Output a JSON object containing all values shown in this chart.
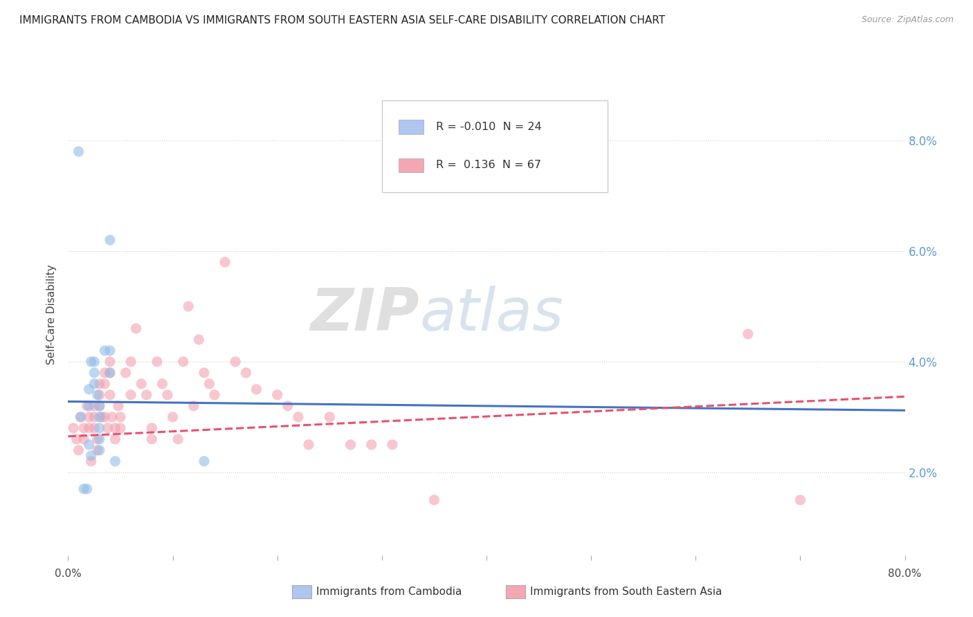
{
  "title": "IMMIGRANTS FROM CAMBODIA VS IMMIGRANTS FROM SOUTH EASTERN ASIA SELF-CARE DISABILITY CORRELATION CHART",
  "source": "Source: ZipAtlas.com",
  "ylabel": "Self-Care Disability",
  "ytick_labels": [
    "2.0%",
    "4.0%",
    "6.0%",
    "8.0%"
  ],
  "ytick_values": [
    0.02,
    0.04,
    0.06,
    0.08
  ],
  "xlim": [
    0.0,
    0.8
  ],
  "ylim": [
    0.005,
    0.092
  ],
  "legend_entry1": {
    "color": "#aec6f0",
    "R": "-0.010",
    "N": "24",
    "label": "Immigrants from Cambodia"
  },
  "legend_entry2": {
    "color": "#f4a7b2",
    "R": " 0.136",
    "N": "67",
    "label": "Immigrants from South Eastern Asia"
  },
  "scatter_blue": {
    "x": [
      0.01,
      0.012,
      0.015,
      0.018,
      0.02,
      0.02,
      0.022,
      0.025,
      0.025,
      0.025,
      0.028,
      0.03,
      0.03,
      0.03,
      0.03,
      0.03,
      0.035,
      0.04,
      0.04,
      0.04,
      0.045,
      0.13,
      0.02,
      0.022
    ],
    "y": [
      0.078,
      0.03,
      0.017,
      0.017,
      0.035,
      0.032,
      0.04,
      0.04,
      0.038,
      0.036,
      0.034,
      0.032,
      0.03,
      0.028,
      0.026,
      0.024,
      0.042,
      0.042,
      0.038,
      0.062,
      0.022,
      0.022,
      0.025,
      0.023
    ]
  },
  "scatter_pink": {
    "x": [
      0.005,
      0.008,
      0.01,
      0.012,
      0.015,
      0.015,
      0.018,
      0.02,
      0.02,
      0.022,
      0.025,
      0.025,
      0.025,
      0.028,
      0.028,
      0.03,
      0.03,
      0.03,
      0.032,
      0.035,
      0.035,
      0.035,
      0.038,
      0.04,
      0.04,
      0.04,
      0.042,
      0.045,
      0.045,
      0.048,
      0.05,
      0.05,
      0.055,
      0.06,
      0.06,
      0.065,
      0.07,
      0.075,
      0.08,
      0.08,
      0.085,
      0.09,
      0.095,
      0.1,
      0.105,
      0.11,
      0.115,
      0.12,
      0.125,
      0.13,
      0.135,
      0.14,
      0.15,
      0.16,
      0.17,
      0.18,
      0.2,
      0.21,
      0.22,
      0.23,
      0.25,
      0.27,
      0.29,
      0.31,
      0.35,
      0.65,
      0.7
    ],
    "y": [
      0.028,
      0.026,
      0.024,
      0.03,
      0.028,
      0.026,
      0.032,
      0.03,
      0.028,
      0.022,
      0.032,
      0.03,
      0.028,
      0.026,
      0.024,
      0.036,
      0.034,
      0.032,
      0.03,
      0.038,
      0.036,
      0.03,
      0.028,
      0.04,
      0.038,
      0.034,
      0.03,
      0.028,
      0.026,
      0.032,
      0.03,
      0.028,
      0.038,
      0.04,
      0.034,
      0.046,
      0.036,
      0.034,
      0.028,
      0.026,
      0.04,
      0.036,
      0.034,
      0.03,
      0.026,
      0.04,
      0.05,
      0.032,
      0.044,
      0.038,
      0.036,
      0.034,
      0.058,
      0.04,
      0.038,
      0.035,
      0.034,
      0.032,
      0.03,
      0.025,
      0.03,
      0.025,
      0.025,
      0.025,
      0.015,
      0.045,
      0.015
    ]
  },
  "trendline_blue_intercept": 0.0328,
  "trendline_blue_slope": -0.002,
  "trendline_pink_intercept": 0.0265,
  "trendline_pink_slope": 0.009,
  "watermark_zip": "ZIP",
  "watermark_atlas": "atlas",
  "scatter_blue_color": "#92bce8",
  "scatter_pink_color": "#f4a0b0",
  "trendline_blue_color": "#4472c4",
  "trendline_pink_color": "#e85070",
  "grid_color": "#cccccc",
  "background_color": "#ffffff",
  "tick_label_color": "#5b9bd5",
  "xtick_positions": [
    0.0,
    0.1,
    0.2,
    0.3,
    0.4,
    0.5,
    0.6,
    0.7,
    0.8
  ]
}
